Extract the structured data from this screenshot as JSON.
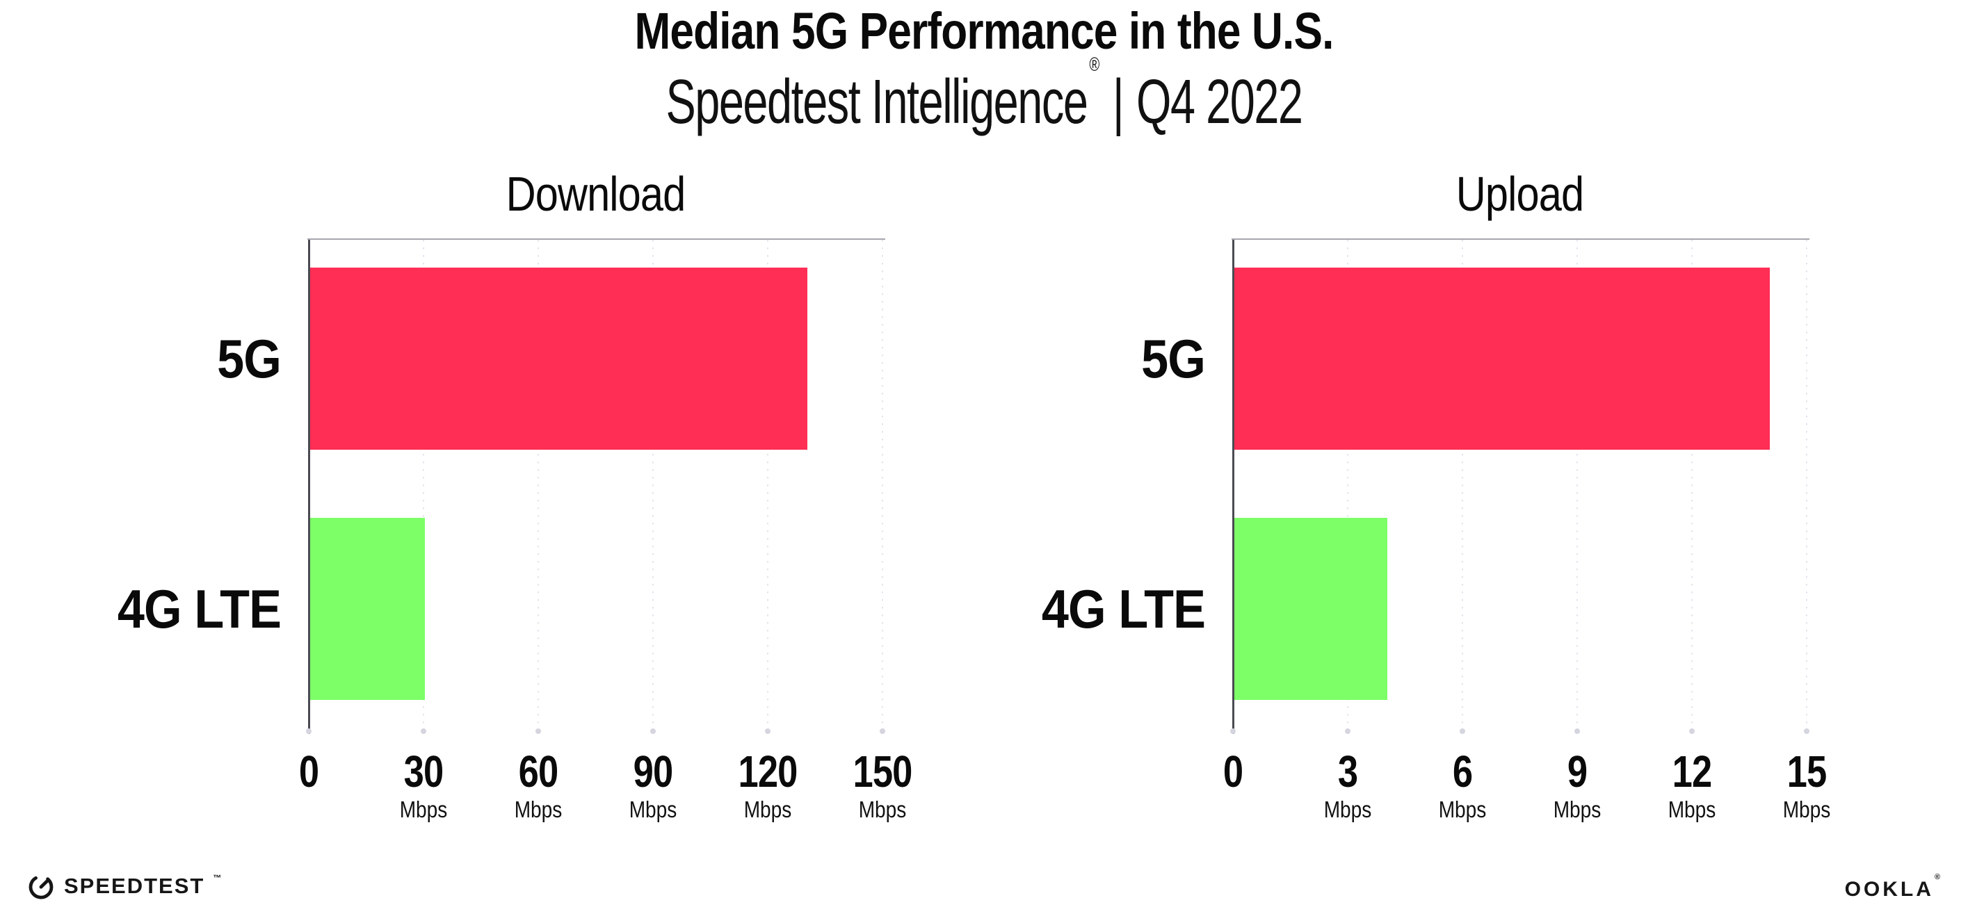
{
  "title": "Median 5G Performance in the U.S.",
  "subtitle": {
    "brand": "Speedtest Intelligence",
    "registered": "®",
    "separator": "|",
    "period": "Q4 2022"
  },
  "colors": {
    "bar_5g": "#FF2E55",
    "bar_4g_lte": "#7DFF68",
    "y_axis": "#4a4b52",
    "x_axis": "#a6a6ae",
    "gridline_dots": "#e3e4ee",
    "text": "#0a0a0a",
    "background": "#ffffff"
  },
  "chart_data": [
    {
      "type": "bar",
      "orientation": "horizontal",
      "title": "Download",
      "categories": [
        "5G",
        "4G LTE"
      ],
      "values": [
        130,
        30
      ],
      "unit": "Mbps",
      "xlim": [
        0,
        150
      ],
      "xticks": [
        0,
        30,
        60,
        90,
        120,
        150
      ],
      "ticks": [
        {
          "label": "0",
          "unit": ""
        },
        {
          "label": "30",
          "unit": "Mbps"
        },
        {
          "label": "60",
          "unit": "Mbps"
        },
        {
          "label": "90",
          "unit": "Mbps"
        },
        {
          "label": "120",
          "unit": "Mbps"
        },
        {
          "label": "150",
          "unit": "Mbps"
        }
      ],
      "bar_colors": [
        "#FF2E55",
        "#7DFF68"
      ],
      "grid": "dotted vertical gridlines at ticks",
      "legend": "none"
    },
    {
      "type": "bar",
      "orientation": "horizontal",
      "title": "Upload",
      "categories": [
        "5G",
        "4G LTE"
      ],
      "values": [
        14,
        4
      ],
      "unit": "Mbps",
      "xlim": [
        0,
        15
      ],
      "xticks": [
        0,
        3,
        6,
        9,
        12,
        15
      ],
      "ticks": [
        {
          "label": "0",
          "unit": ""
        },
        {
          "label": "3",
          "unit": "Mbps"
        },
        {
          "label": "6",
          "unit": "Mbps"
        },
        {
          "label": "9",
          "unit": "Mbps"
        },
        {
          "label": "12",
          "unit": "Mbps"
        },
        {
          "label": "15",
          "unit": "Mbps"
        }
      ],
      "bar_colors": [
        "#FF2E55",
        "#7DFF68"
      ],
      "grid": "dotted vertical gridlines at ticks",
      "legend": "none"
    }
  ],
  "footer": {
    "speedtest_label": "SPEEDTEST",
    "speedtest_trademark": "™",
    "ookla_label": "OOKLA",
    "ookla_registered": "®"
  }
}
